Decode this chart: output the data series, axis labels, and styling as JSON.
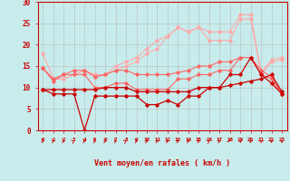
{
  "title": "",
  "xlabel": "Vent moyen/en rafales ( km/h )",
  "ylabel": "",
  "xlim": [
    -0.5,
    23.5
  ],
  "ylim": [
    0,
    30
  ],
  "yticks": [
    0,
    5,
    10,
    15,
    20,
    25,
    30
  ],
  "xticks": [
    0,
    1,
    2,
    3,
    4,
    5,
    6,
    7,
    8,
    9,
    10,
    11,
    12,
    13,
    14,
    15,
    16,
    17,
    18,
    19,
    20,
    21,
    22,
    23
  ],
  "background_color": "#c8ecec",
  "grid_color": "#b0b0b0",
  "series": [
    {
      "x": [
        0,
        1,
        2,
        3,
        4,
        5,
        6,
        7,
        8,
        9,
        10,
        11,
        12,
        13,
        14,
        15,
        16,
        17,
        18,
        19,
        20,
        21,
        22,
        23
      ],
      "y": [
        9.5,
        8.5,
        8.5,
        8.5,
        0,
        8,
        8,
        8,
        8,
        8,
        6,
        6,
        7,
        6,
        8,
        8,
        10,
        10,
        13,
        13,
        17,
        13,
        11,
        8.5
      ],
      "color": "#cc0000",
      "marker": "D",
      "markersize": 1.8,
      "linewidth": 0.9,
      "alpha": 1.0,
      "zorder": 4
    },
    {
      "x": [
        0,
        1,
        2,
        3,
        4,
        5,
        6,
        7,
        8,
        9,
        10,
        11,
        12,
        13,
        14,
        15,
        16,
        17,
        18,
        19,
        20,
        21,
        22,
        23
      ],
      "y": [
        9.5,
        9.5,
        9.5,
        9.5,
        9.5,
        9.5,
        10,
        10,
        10,
        9,
        9,
        9,
        9,
        9,
        9,
        10,
        10,
        10,
        10.5,
        11,
        11.5,
        12,
        13,
        9
      ],
      "color": "#cc0000",
      "marker": "D",
      "markersize": 1.8,
      "linewidth": 0.9,
      "alpha": 1.0,
      "zorder": 4
    },
    {
      "x": [
        0,
        1,
        2,
        3,
        4,
        5,
        6,
        7,
        8,
        9,
        10,
        11,
        12,
        13,
        14,
        15,
        16,
        17,
        18,
        19,
        20,
        21,
        22,
        23
      ],
      "y": [
        14.5,
        11.5,
        13,
        13,
        13,
        10,
        10,
        11,
        11,
        9.5,
        9.5,
        9.5,
        9.5,
        12,
        12,
        13,
        13,
        14,
        14,
        17,
        17,
        13,
        12,
        8.5
      ],
      "color": "#ff6666",
      "marker": "D",
      "markersize": 1.8,
      "linewidth": 0.8,
      "alpha": 1.0,
      "zorder": 3
    },
    {
      "x": [
        0,
        1,
        2,
        3,
        4,
        5,
        6,
        7,
        8,
        9,
        10,
        11,
        12,
        13,
        14,
        15,
        16,
        17,
        18,
        19,
        20,
        21,
        22,
        23
      ],
      "y": [
        14.5,
        12,
        13,
        14,
        14,
        12.5,
        13,
        14,
        14,
        13,
        13,
        13,
        13,
        13.5,
        14,
        15,
        15,
        16,
        16,
        17,
        17,
        14,
        12.5,
        8.5
      ],
      "color": "#ff6666",
      "marker": "D",
      "markersize": 1.8,
      "linewidth": 0.8,
      "alpha": 1.0,
      "zorder": 3
    },
    {
      "x": [
        0,
        1,
        2,
        3,
        4,
        5,
        6,
        7,
        8,
        9,
        10,
        11,
        12,
        13,
        14,
        15,
        16,
        17,
        18,
        19,
        20,
        21,
        22,
        23
      ],
      "y": [
        18,
        12,
        12,
        13,
        14,
        13,
        13,
        14,
        15,
        16,
        18,
        19,
        22,
        24,
        23,
        24,
        23,
        23,
        23,
        27,
        27,
        13.5,
        16.5,
        17
      ],
      "color": "#ffaaaa",
      "marker": "D",
      "markersize": 1.8,
      "linewidth": 0.8,
      "alpha": 1.0,
      "zorder": 2
    },
    {
      "x": [
        0,
        1,
        2,
        3,
        4,
        5,
        6,
        7,
        8,
        9,
        10,
        11,
        12,
        13,
        14,
        15,
        16,
        17,
        18,
        19,
        20,
        21,
        22,
        23
      ],
      "y": [
        14.5,
        12,
        12,
        13,
        14,
        12.5,
        13,
        15,
        16,
        17,
        19,
        21,
        22,
        24,
        23,
        24,
        21,
        21,
        21,
        26,
        26,
        13,
        16,
        16.5
      ],
      "color": "#ffaaaa",
      "marker": "D",
      "markersize": 1.8,
      "linewidth": 0.8,
      "alpha": 1.0,
      "zorder": 2
    }
  ],
  "wind_arrows_x": [
    0,
    1,
    2,
    3,
    4,
    5,
    6,
    7,
    8,
    9,
    10,
    11,
    12,
    13,
    14,
    15,
    16,
    17,
    18,
    19,
    20,
    21,
    22,
    23
  ],
  "wind_arrows_dirs": [
    0,
    0,
    0,
    45,
    0,
    0,
    0,
    0,
    45,
    0,
    0,
    0,
    0,
    0,
    0,
    0,
    45,
    0,
    -45,
    -90,
    -90,
    -90,
    -90,
    -90
  ]
}
